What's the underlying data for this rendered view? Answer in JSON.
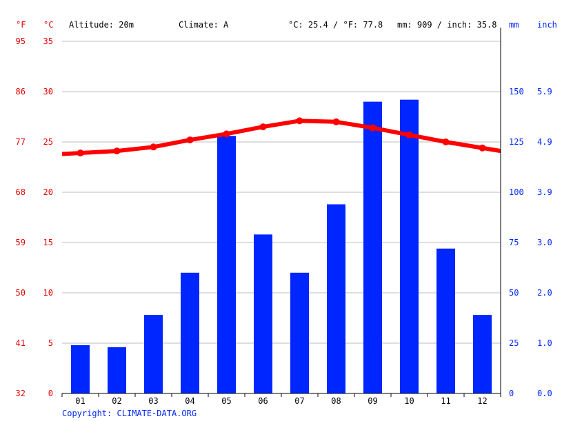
{
  "header": {
    "unit_f": "°F",
    "unit_c": "°C",
    "altitude": "Altitude: 20m",
    "climate": "Climate: A",
    "avg_temp": "°C: 25.4 / °F: 77.8",
    "precip_total": "mm: 909 / inch: 35.8",
    "unit_mm": "mm",
    "unit_inch": "inch"
  },
  "copyright": "Copyright: CLIMATE-DATA.ORG",
  "colors": {
    "temperature": "#ff0000",
    "precipitation": "#0026ff",
    "left_axis": "#e50000",
    "right_axis": "#0026ff",
    "grid": "#bdbdbd"
  },
  "chart_data": {
    "type": "bar",
    "categories": [
      "01",
      "02",
      "03",
      "04",
      "05",
      "06",
      "07",
      "08",
      "09",
      "10",
      "11",
      "12"
    ],
    "series": [
      {
        "kind": "bar",
        "axis": "right",
        "values": [
          24,
          23,
          39,
          60,
          128,
          79,
          60,
          94,
          145,
          146,
          72,
          39
        ]
      },
      {
        "kind": "line",
        "axis": "left",
        "values": [
          23.9,
          24.1,
          24.5,
          25.2,
          25.8,
          26.5,
          27.1,
          27.0,
          26.4,
          25.7,
          25.0,
          24.4
        ]
      }
    ],
    "left_axis": {
      "celsius_ticks": [
        "0",
        "5",
        "10",
        "15",
        "20",
        "25",
        "30",
        "35"
      ],
      "fahrenheit_ticks": [
        "32",
        "41",
        "50",
        "59",
        "68",
        "77",
        "86",
        "95"
      ],
      "ylim": [
        0,
        35
      ]
    },
    "right_axis": {
      "mm_ticks": [
        "0",
        "25",
        "50",
        "75",
        "100",
        "125",
        "150"
      ],
      "inch_ticks": [
        "0.0",
        "1.0",
        "2.0",
        "3.0",
        "3.9",
        "4.9",
        "5.9"
      ],
      "ylim": [
        0,
        175
      ]
    },
    "grid": true
  }
}
